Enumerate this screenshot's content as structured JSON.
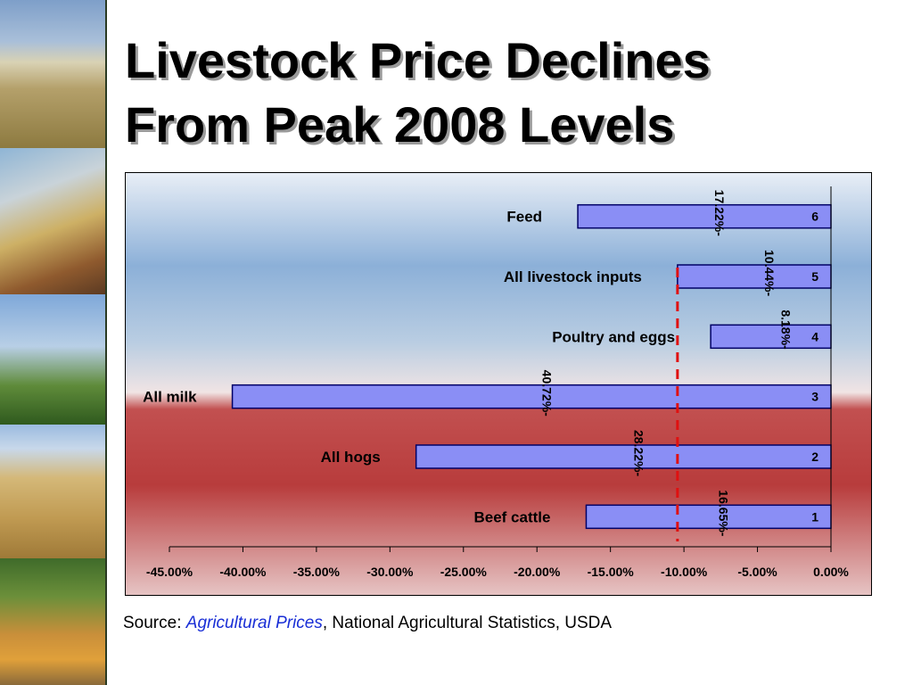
{
  "title": {
    "line1": "Livestock Price Declines",
    "line2": "From Peak 2008 Levels"
  },
  "source": {
    "prefix": "Source: ",
    "publication": "Agricultural Prices",
    "suffix": ", National Agricultural Statistics, USDA"
  },
  "colors": {
    "bar_fill": "#8a8ef5",
    "bar_stroke": "#000066",
    "reference_line": "#e01010",
    "background_top": "#8cb0d8",
    "background_bottom": "#b84040"
  },
  "chart_data": {
    "type": "bar",
    "orientation": "horizontal",
    "categories": [
      "Beef cattle",
      "All hogs",
      "All milk",
      "Poultry and eggs",
      "All livestock inputs",
      "Feed"
    ],
    "series_labels": [
      "1",
      "2",
      "3",
      "4",
      "5",
      "6"
    ],
    "values": [
      -16.65,
      -28.22,
      -40.72,
      -8.18,
      -10.44,
      -17.22
    ],
    "data_labels": [
      "16.65%-",
      "28.22%-",
      "40.72%-",
      "8.18%-",
      "10.44%-",
      "17.22%-"
    ],
    "reference_line_value": -10.44,
    "xlim": [
      -45,
      0
    ],
    "xticks": [
      "-45.00%",
      "-40.00%",
      "-35.00%",
      "-30.00%",
      "-25.00%",
      "-20.00%",
      "-15.00%",
      "-10.00%",
      "-5.00%",
      "0.00%"
    ],
    "xtick_values": [
      -45,
      -40,
      -35,
      -30,
      -25,
      -20,
      -15,
      -10,
      -5,
      0
    ],
    "grid": false,
    "legend": "none"
  }
}
